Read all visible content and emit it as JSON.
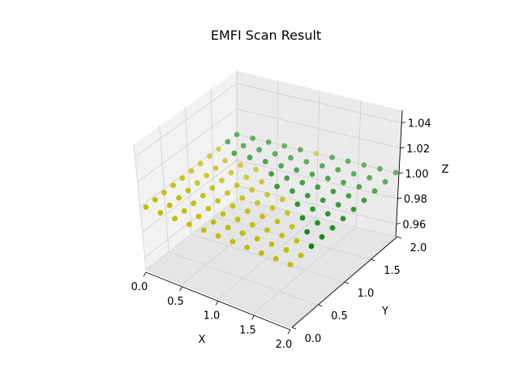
{
  "chart_data": {
    "type": "scatter3d",
    "title": "EMFI Scan Result",
    "xlabel": "X",
    "ylabel": "Y",
    "zlabel": "Z",
    "xlim": [
      0,
      2
    ],
    "ylim": [
      0,
      2
    ],
    "zlim": [
      0.95,
      1.05
    ],
    "x_ticks": [
      "0.0",
      "0.5",
      "1.0",
      "1.5",
      "2.0"
    ],
    "y_ticks": [
      "0.0",
      "0.5",
      "1.0",
      "1.5",
      "2.0"
    ],
    "z_ticks": [
      "0.96",
      "0.98",
      "1.00",
      "1.02",
      "1.04"
    ],
    "grid": true,
    "grid_x": [
      0,
      0.2,
      0.4,
      0.6,
      0.8,
      1.0,
      1.2,
      1.4,
      1.6,
      1.8,
      2.0
    ],
    "grid_y": [
      0,
      0.2,
      0.4,
      0.6,
      0.8,
      1.0,
      1.2,
      1.4,
      1.6,
      1.8,
      2.0
    ],
    "z_value": 1.0,
    "colors": {
      "yellow": "#bfbf00",
      "green": "#008000"
    },
    "point_colors": [
      "YYYYYYYYYYY",
      "YYYYYYYYYYY",
      "YYYYYYYYYYG",
      "YYYYYYYYYGG",
      "YYYYYYYYGGG",
      "YYYYYYYGGGG",
      "YYYYYGGGGGG",
      "YYYYGGGGGGG",
      "YGGGGGGGGGG",
      "GGGGGGGGGGG",
      "GGGGGYGGGGG"
    ]
  }
}
